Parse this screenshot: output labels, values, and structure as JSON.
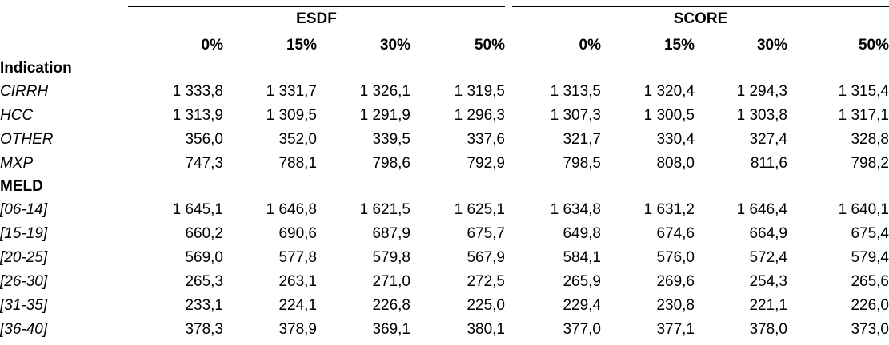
{
  "groups": [
    "ESDF",
    "SCORE"
  ],
  "columns": [
    "0%",
    "15%",
    "30%",
    "50%",
    "0%",
    "15%",
    "30%",
    "50%"
  ],
  "sections": [
    {
      "title": "Indication",
      "rows": [
        {
          "label": "CIRRH",
          "values": [
            "1 333,8",
            "1 331,7",
            "1 326,1",
            "1 319,5",
            "1 313,5",
            "1 320,4",
            "1 294,3",
            "1 315,4"
          ]
        },
        {
          "label": "HCC",
          "values": [
            "1 313,9",
            "1 309,5",
            "1 291,9",
            "1 296,3",
            "1 307,3",
            "1 300,5",
            "1 303,8",
            "1 317,1"
          ]
        },
        {
          "label": "OTHER",
          "values": [
            "356,0",
            "352,0",
            "339,5",
            "337,6",
            "321,7",
            "330,4",
            "327,4",
            "328,8"
          ]
        },
        {
          "label": "MXP",
          "values": [
            "747,3",
            "788,1",
            "798,6",
            "792,9",
            "798,5",
            "808,0",
            "811,6",
            "798,2"
          ]
        }
      ]
    },
    {
      "title": "MELD",
      "rows": [
        {
          "label": "[06-14]",
          "values": [
            "1 645,1",
            "1 646,8",
            "1 621,5",
            "1 625,1",
            "1 634,8",
            "1 631,2",
            "1 646,4",
            "1 640,1"
          ]
        },
        {
          "label": "[15-19]",
          "values": [
            "660,2",
            "690,6",
            "687,9",
            "675,7",
            "649,8",
            "674,6",
            "664,9",
            "675,4"
          ]
        },
        {
          "label": "[20-25]",
          "values": [
            "569,0",
            "577,8",
            "579,8",
            "567,9",
            "584,1",
            "576,0",
            "572,4",
            "579,4"
          ]
        },
        {
          "label": "[26-30]",
          "values": [
            "265,3",
            "263,1",
            "271,0",
            "272,5",
            "265,9",
            "269,6",
            "254,3",
            "265,6"
          ]
        },
        {
          "label": "[31-35]",
          "values": [
            "233,1",
            "224,1",
            "226,8",
            "225,0",
            "229,4",
            "230,8",
            "221,1",
            "226,0"
          ]
        },
        {
          "label": "[36-40]",
          "values": [
            "378,3",
            "378,9",
            "369,1",
            "380,1",
            "377,0",
            "377,1",
            "378,0",
            "373,0"
          ]
        }
      ]
    }
  ]
}
